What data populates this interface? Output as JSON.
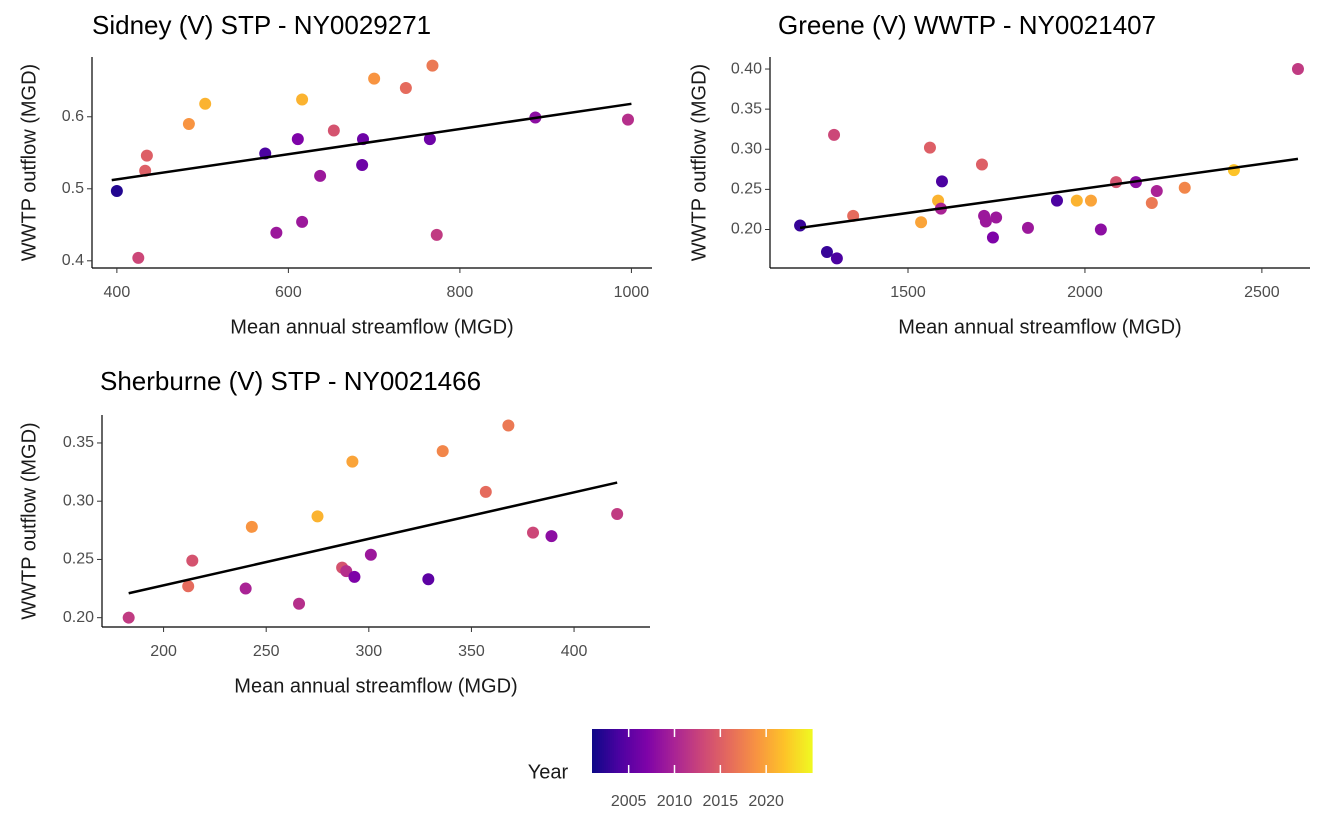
{
  "chart_data": [
    {
      "type": "scatter",
      "title": "Sidney (V) STP - NY0029271",
      "x_label": "Mean annual streamflow (MGD)",
      "y_label": "WWTP outflow (MGD)",
      "x": [
        400,
        425,
        435,
        433,
        484,
        503,
        573,
        586,
        611,
        616,
        616,
        637,
        653,
        687,
        686,
        700,
        737,
        768,
        765,
        773,
        888,
        996
      ],
      "y": [
        0.497,
        0.404,
        0.546,
        0.525,
        0.59,
        0.618,
        0.549,
        0.439,
        0.569,
        0.454,
        0.624,
        0.518,
        0.581,
        0.569,
        0.533,
        0.653,
        0.64,
        0.671,
        0.569,
        0.436,
        0.599,
        0.596
      ],
      "year": [
        2002,
        2013,
        2015,
        2015,
        2019,
        2021,
        2004,
        2009,
        2007,
        2009,
        2021,
        2009,
        2014,
        2006,
        2006,
        2019,
        2016,
        2017,
        2006,
        2012,
        2008,
        2011
      ],
      "trend": {
        "x": [
          394,
          1000
        ],
        "y": [
          0.512,
          0.618
        ]
      },
      "xlim": [
        371,
        1024
      ],
      "ylim": [
        0.39,
        0.683
      ],
      "xticks": [
        400,
        600,
        800,
        1000
      ],
      "yticks": [
        0.4,
        0.5,
        0.6
      ]
    },
    {
      "type": "scatter",
      "title": "Greene (V) WWTP - NY0021407",
      "x_label": "Mean annual streamflow (MGD)",
      "y_label": "WWTP outflow (MGD)",
      "x": [
        1195,
        1271,
        1299,
        1291,
        1345,
        1537,
        1562,
        1585,
        1596,
        1593,
        1709,
        1715,
        1720,
        1749,
        1740,
        1839,
        1921,
        1977,
        2017,
        2045,
        2088,
        2144,
        2203,
        2189,
        2282,
        2421,
        2602
      ],
      "y": [
        0.205,
        0.172,
        0.164,
        0.318,
        0.217,
        0.209,
        0.302,
        0.236,
        0.26,
        0.226,
        0.281,
        0.217,
        0.21,
        0.215,
        0.19,
        0.202,
        0.236,
        0.236,
        0.236,
        0.2,
        0.259,
        0.259,
        0.248,
        0.233,
        0.252,
        0.274,
        0.4
      ],
      "year": [
        2003,
        2003,
        2004,
        2013,
        2016,
        2020,
        2015,
        2021,
        2004,
        2010,
        2015,
        2009,
        2009,
        2009,
        2007,
        2009,
        2004,
        2021,
        2020,
        2008,
        2014,
        2008,
        2010,
        2017,
        2018,
        2022,
        2012
      ],
      "trend": {
        "x": [
          1195,
          2602
        ],
        "y": [
          0.202,
          0.288
        ]
      },
      "xlim": [
        1110,
        2636
      ],
      "ylim": [
        0.152,
        0.415
      ],
      "xticks": [
        1500,
        2000,
        2500
      ],
      "yticks": [
        {
          "value": 0.2,
          "label": "0.20"
        },
        0.25,
        {
          "value": 0.3,
          "label": "0.30"
        },
        0.35,
        {
          "value": 0.4,
          "label": "0.40"
        }
      ]
    },
    {
      "type": "scatter",
      "title": "Sherburne (V) STP - NY0021466",
      "x_label": "Mean annual streamflow (MGD)",
      "y_label": "WWTP outflow (MGD)",
      "x": [
        183,
        212,
        214,
        240,
        243,
        266,
        275,
        287,
        289,
        292,
        293,
        301,
        329,
        336,
        357,
        368,
        380,
        389,
        421
      ],
      "y": [
        0.2,
        0.227,
        0.249,
        0.225,
        0.278,
        0.212,
        0.287,
        0.243,
        0.24,
        0.334,
        0.235,
        0.254,
        0.233,
        0.343,
        0.308,
        0.365,
        0.273,
        0.27,
        0.289
      ],
      "year": [
        2012,
        2016,
        2014,
        2010,
        2019,
        2011,
        2021,
        2014,
        2011,
        2020,
        2007,
        2009,
        2005,
        2018,
        2016,
        2017,
        2013,
        2008,
        2012
      ],
      "trend": {
        "x": [
          183,
          421
        ],
        "y": [
          0.221,
          0.316
        ]
      },
      "xlim": [
        170,
        437
      ],
      "ylim": [
        0.192,
        0.374
      ],
      "xticks": [
        200,
        250,
        300,
        350,
        400
      ],
      "yticks": [
        {
          "value": 0.2,
          "label": "0.20"
        },
        0.25,
        {
          "value": 0.3,
          "label": "0.30"
        },
        0.35
      ]
    }
  ],
  "color_scale": {
    "title": "Year",
    "colormap": "plasma",
    "lim": [
      2001,
      2025
    ],
    "ticks": [
      2005,
      2010,
      2015,
      2020
    ]
  }
}
